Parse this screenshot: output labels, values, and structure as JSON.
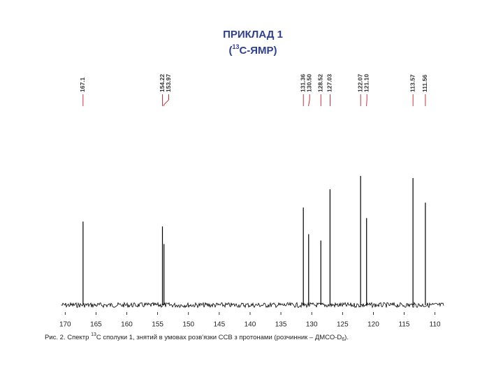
{
  "chart_data": {
    "type": "spectrum",
    "title": "ПРИКЛАД 1",
    "subtitle": [
      "(",
      "13",
      "С-ЯМР)"
    ],
    "caption": [
      "Рис. 2. Спектр ",
      "13",
      "C сполуки 1, знятий в умовах розв'язки ССВ з протонами (розчинник – ДМСО-D",
      "6",
      ")."
    ],
    "x": [
      167.1,
      154.22,
      153.97,
      131.36,
      130.5,
      128.52,
      127.03,
      122.07,
      121.1,
      113.57,
      111.56
    ],
    "value_labels": [
      "167.1",
      "154.22",
      "153.97",
      "131.36",
      "130.50",
      "128.52",
      "127.03",
      "122.07",
      "121.10",
      "113.57",
      "111.56"
    ],
    "values": [
      119,
      112,
      87,
      139,
      101,
      92,
      165,
      184,
      124,
      181,
      146
    ],
    "color": "#000000",
    "label_color": "#c00000",
    "xlim": [
      170.6,
      108.6
    ],
    "xticks": [
      170,
      165,
      160,
      155,
      150,
      145,
      140,
      135,
      130,
      125,
      120,
      115,
      110
    ]
  }
}
